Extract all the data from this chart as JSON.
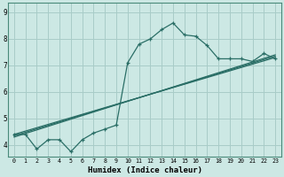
{
  "title": "",
  "xlabel": "Humidex (Indice chaleur)",
  "ylabel": "",
  "background_color": "#cce8e4",
  "grid_color": "#a8ccc8",
  "line_color": "#2a6e66",
  "x_ticks": [
    0,
    1,
    2,
    3,
    4,
    5,
    6,
    7,
    8,
    9,
    10,
    11,
    12,
    13,
    14,
    15,
    16,
    17,
    18,
    19,
    20,
    21,
    22,
    23
  ],
  "y_ticks": [
    4,
    5,
    6,
    7,
    8,
    9
  ],
  "ylim": [
    3.55,
    9.35
  ],
  "xlim": [
    -0.5,
    23.5
  ],
  "curve1_x": [
    0,
    1,
    2,
    3,
    4,
    5,
    6,
    7,
    8,
    9,
    10,
    11,
    12,
    13,
    14,
    15,
    16,
    17,
    18,
    19,
    20,
    21,
    22,
    23
  ],
  "curve1_y": [
    4.4,
    4.4,
    3.85,
    4.2,
    4.2,
    3.75,
    4.2,
    4.45,
    4.6,
    4.75,
    7.1,
    7.8,
    8.0,
    8.35,
    8.6,
    8.15,
    8.1,
    7.75,
    7.25,
    7.25,
    7.25,
    7.15,
    7.45,
    7.25
  ],
  "curve2_x": [
    0,
    23
  ],
  "curve2_y": [
    4.4,
    7.3
  ],
  "curve3_x": [
    0,
    23
  ],
  "curve3_y": [
    4.35,
    7.35
  ],
  "curve4_x": [
    0,
    23
  ],
  "curve4_y": [
    4.3,
    7.4
  ]
}
